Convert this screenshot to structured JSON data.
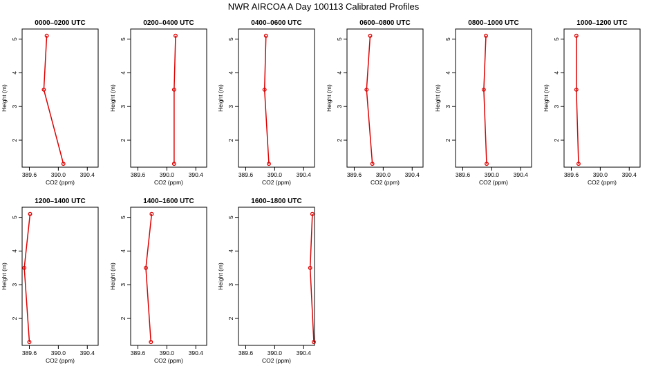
{
  "page": {
    "title": "NWR AIRCOA A  Day 100113  Calibrated Profiles"
  },
  "chart_data": [
    {
      "type": "line",
      "title": "0000–0200 UTC",
      "xlabel": "CO2 (ppm)",
      "ylabel": "Height (m)",
      "xlim": [
        389.5,
        390.55
      ],
      "ylim": [
        1.2,
        5.3
      ],
      "xticks": [
        "389.6",
        "390.0",
        "390.4"
      ],
      "yticks": [
        "2",
        "3",
        "4",
        "5"
      ],
      "points": [
        {
          "x": 389.84,
          "y": 5.1
        },
        {
          "x": 389.8,
          "y": 3.5
        },
        {
          "x": 390.07,
          "y": 1.3
        }
      ],
      "color": "#dd0000"
    },
    {
      "type": "line",
      "title": "0200–0400 UTC",
      "xlabel": "CO2 (ppm)",
      "ylabel": "Height (m)",
      "xlim": [
        389.5,
        390.55
      ],
      "ylim": [
        1.2,
        5.3
      ],
      "xticks": [
        "389.6",
        "390.0",
        "390.4"
      ],
      "yticks": [
        "2",
        "3",
        "4",
        "5"
      ],
      "points": [
        {
          "x": 390.12,
          "y": 5.1
        },
        {
          "x": 390.1,
          "y": 3.5
        },
        {
          "x": 390.1,
          "y": 1.3
        }
      ],
      "color": "#dd0000"
    },
    {
      "type": "line",
      "title": "0400–0600 UTC",
      "xlabel": "CO2 (ppm)",
      "ylabel": "Height (m)",
      "xlim": [
        389.5,
        390.55
      ],
      "ylim": [
        1.2,
        5.3
      ],
      "xticks": [
        "389.6",
        "390.0",
        "390.4"
      ],
      "yticks": [
        "2",
        "3",
        "4",
        "5"
      ],
      "points": [
        {
          "x": 389.88,
          "y": 5.1
        },
        {
          "x": 389.86,
          "y": 3.5
        },
        {
          "x": 389.92,
          "y": 1.3
        }
      ],
      "color": "#dd0000"
    },
    {
      "type": "line",
      "title": "0600–0800 UTC",
      "xlabel": "CO2 (ppm)",
      "ylabel": "Height (m)",
      "xlim": [
        389.5,
        390.55
      ],
      "ylim": [
        1.2,
        5.3
      ],
      "xticks": [
        "389.6",
        "390.0",
        "390.4"
      ],
      "yticks": [
        "2",
        "3",
        "4",
        "5"
      ],
      "points": [
        {
          "x": 389.82,
          "y": 5.1
        },
        {
          "x": 389.77,
          "y": 3.5
        },
        {
          "x": 389.85,
          "y": 1.3
        }
      ],
      "color": "#dd0000"
    },
    {
      "type": "line",
      "title": "0800–1000 UTC",
      "xlabel": "CO2 (ppm)",
      "ylabel": "Height (m)",
      "xlim": [
        389.5,
        390.55
      ],
      "ylim": [
        1.2,
        5.3
      ],
      "xticks": [
        "389.6",
        "390.0",
        "390.4"
      ],
      "yticks": [
        "2",
        "3",
        "4",
        "5"
      ],
      "points": [
        {
          "x": 389.92,
          "y": 5.1
        },
        {
          "x": 389.89,
          "y": 3.5
        },
        {
          "x": 389.93,
          "y": 1.3
        }
      ],
      "color": "#dd0000"
    },
    {
      "type": "line",
      "title": "1000–1200 UTC",
      "xlabel": "CO2 (ppm)",
      "ylabel": "Height (m)",
      "xlim": [
        389.5,
        390.55
      ],
      "ylim": [
        1.2,
        5.3
      ],
      "xticks": [
        "389.6",
        "390.0",
        "390.4"
      ],
      "yticks": [
        "2",
        "3",
        "4",
        "5"
      ],
      "points": [
        {
          "x": 389.67,
          "y": 5.1
        },
        {
          "x": 389.67,
          "y": 3.5
        },
        {
          "x": 389.7,
          "y": 1.3
        }
      ],
      "color": "#dd0000"
    },
    {
      "type": "line",
      "title": "1200–1400 UTC",
      "xlabel": "CO2 (ppm)",
      "ylabel": "Height (m)",
      "xlim": [
        389.5,
        390.55
      ],
      "ylim": [
        1.2,
        5.3
      ],
      "xticks": [
        "389.6",
        "390.0",
        "390.4"
      ],
      "yticks": [
        "2",
        "3",
        "4",
        "5"
      ],
      "points": [
        {
          "x": 389.61,
          "y": 5.1
        },
        {
          "x": 389.53,
          "y": 3.5
        },
        {
          "x": 389.6,
          "y": 1.3
        }
      ],
      "color": "#dd0000"
    },
    {
      "type": "line",
      "title": "1400–1600 UTC",
      "xlabel": "CO2 (ppm)",
      "ylabel": "Height (m)",
      "xlim": [
        389.5,
        390.55
      ],
      "ylim": [
        1.2,
        5.3
      ],
      "xticks": [
        "389.6",
        "390.0",
        "390.4"
      ],
      "yticks": [
        "2",
        "3",
        "4",
        "5"
      ],
      "points": [
        {
          "x": 389.79,
          "y": 5.1
        },
        {
          "x": 389.71,
          "y": 3.5
        },
        {
          "x": 389.78,
          "y": 1.3
        }
      ],
      "color": "#dd0000"
    },
    {
      "type": "line",
      "title": "1600–1800 UTC",
      "xlabel": "CO2 (ppm)",
      "ylabel": "Height (m)",
      "xlim": [
        389.5,
        390.55
      ],
      "ylim": [
        1.2,
        5.3
      ],
      "xticks": [
        "389.6",
        "390.0",
        "390.4"
      ],
      "yticks": [
        "2",
        "3",
        "4",
        "5"
      ],
      "points": [
        {
          "x": 390.52,
          "y": 5.1
        },
        {
          "x": 390.49,
          "y": 3.5
        },
        {
          "x": 390.54,
          "y": 1.3
        }
      ],
      "color": "#dd0000"
    }
  ]
}
